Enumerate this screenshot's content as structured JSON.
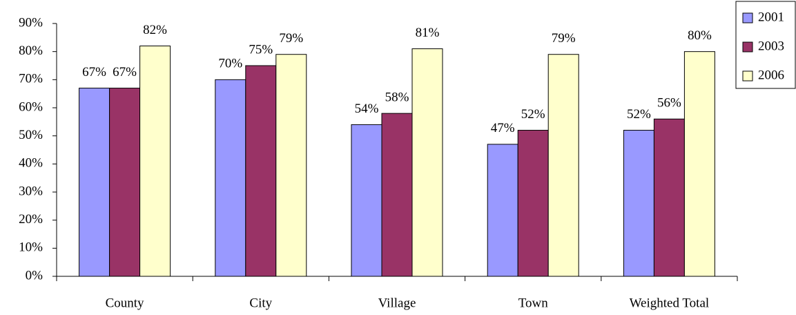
{
  "chart_data": {
    "type": "bar",
    "categories": [
      "County",
      "City",
      "Village",
      "Town",
      "Weighted Total"
    ],
    "series": [
      {
        "name": "2001",
        "color": "#9999ff",
        "values": [
          67,
          70,
          54,
          47,
          52
        ],
        "value_labels": [
          "67%",
          "70%",
          "54%",
          "47%",
          "52%"
        ]
      },
      {
        "name": "2003",
        "color": "#993366",
        "values": [
          67,
          75,
          58,
          52,
          56
        ],
        "value_labels": [
          "67%",
          "75%",
          "58%",
          "52%",
          "56%"
        ]
      },
      {
        "name": "2006",
        "color": "#ffffcc",
        "values": [
          82,
          79,
          81,
          79,
          80
        ],
        "value_labels": [
          "82%",
          "79%",
          "81%",
          "79%",
          "80%"
        ]
      }
    ],
    "ylim": [
      0,
      90
    ],
    "yticks": [
      {
        "value": 0,
        "label": "0%"
      },
      {
        "value": 10,
        "label": "10%"
      },
      {
        "value": 20,
        "label": "20%"
      },
      {
        "value": 30,
        "label": "30%"
      },
      {
        "value": 40,
        "label": "40%"
      },
      {
        "value": 50,
        "label": "50%"
      },
      {
        "value": 60,
        "label": "60%"
      },
      {
        "value": 70,
        "label": "70%"
      },
      {
        "value": 80,
        "label": "80%"
      },
      {
        "value": 90,
        "label": "90%"
      }
    ],
    "grid": false,
    "legend": "top-right"
  }
}
